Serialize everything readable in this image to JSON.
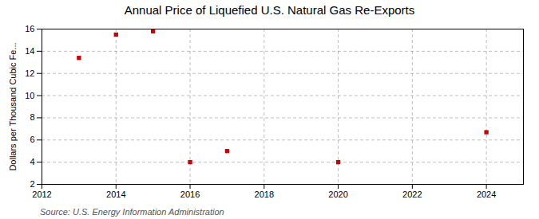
{
  "chart_data": {
    "type": "scatter",
    "title": "Annual Price of Liquefied U.S. Natural Gas Re-Exports",
    "ylabel": "Dollars per Thousand Cubic Fe...",
    "annotations": [
      "Source: U.S. Energy Information Administration"
    ],
    "x": [
      2013,
      2014,
      2015,
      2016,
      2017,
      2020,
      2024
    ],
    "values": [
      13.4,
      15.5,
      15.8,
      4.0,
      5.0,
      4.0,
      6.7
    ],
    "color": "#cc0000",
    "marker": "square",
    "xlim": [
      2012,
      2025
    ],
    "xticks": [
      2012,
      2014,
      2016,
      2018,
      2020,
      2022,
      2024
    ],
    "ylim": [
      2,
      16
    ],
    "yticks": [
      2,
      4,
      6,
      8,
      10,
      12,
      14,
      16
    ],
    "grid": true
  }
}
